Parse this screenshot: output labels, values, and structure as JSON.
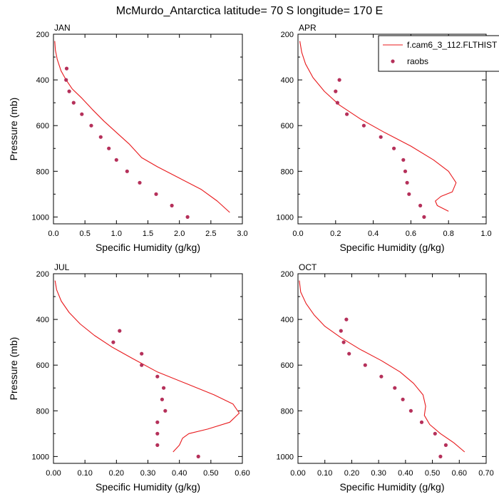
{
  "figure": {
    "title": "McMurdo_Antarctica  latitude= 70 S longitude= 170 E"
  },
  "legend": {
    "model_label": "f.cam6_3_112.FLTHIST",
    "obs_label": "raobs",
    "placement": "top-right (in APR panel)"
  },
  "colors": {
    "model_line": "#e8191c",
    "obs_marker": "#b5305a"
  },
  "chart_data": [
    {
      "type": "line",
      "title": "JAN",
      "xlabel": "Specific Humidity (g/kg)",
      "ylabel": "Pressure (mb)",
      "xlim": [
        0,
        3.0
      ],
      "ylim": [
        200,
        1030
      ],
      "y_inverted": true,
      "xticks": [
        "0.0",
        "0.5",
        "1.0",
        "1.5",
        "2.0",
        "2.5",
        "3.0"
      ],
      "yticks": [
        "200",
        "400",
        "600",
        "800",
        "1000"
      ],
      "series": [
        {
          "name": "f.cam6_3_112.FLTHIST",
          "kind": "line",
          "points": [
            [
              0.02,
              230
            ],
            [
              0.03,
              270
            ],
            [
              0.06,
              310
            ],
            [
              0.12,
              360
            ],
            [
              0.2,
              400
            ],
            [
              0.3,
              440
            ],
            [
              0.45,
              480
            ],
            [
              0.62,
              530
            ],
            [
              0.8,
              580
            ],
            [
              1.0,
              630
            ],
            [
              1.2,
              680
            ],
            [
              1.4,
              740
            ],
            [
              1.65,
              780
            ],
            [
              2.0,
              830
            ],
            [
              2.35,
              880
            ],
            [
              2.6,
              930
            ],
            [
              2.8,
              980
            ]
          ]
        },
        {
          "name": "raobs",
          "kind": "scatter",
          "points": [
            [
              0.21,
              350
            ],
            [
              0.2,
              400
            ],
            [
              0.25,
              450
            ],
            [
              0.32,
              500
            ],
            [
              0.45,
              550
            ],
            [
              0.6,
              600
            ],
            [
              0.75,
              650
            ],
            [
              0.88,
              700
            ],
            [
              1.0,
              750
            ],
            [
              1.17,
              800
            ],
            [
              1.37,
              850
            ],
            [
              1.63,
              900
            ],
            [
              1.88,
              950
            ],
            [
              2.13,
              1000
            ]
          ]
        }
      ]
    },
    {
      "type": "line",
      "title": "APR",
      "xlabel": "Specific Humidity (g/kg)",
      "ylabel": "",
      "xlim": [
        0,
        1.0
      ],
      "ylim": [
        200,
        1030
      ],
      "y_inverted": true,
      "xticks": [
        "0.0",
        "0.2",
        "0.4",
        "0.6",
        "0.8",
        "1.0"
      ],
      "yticks": [
        "200",
        "400",
        "600",
        "800",
        "1000"
      ],
      "series": [
        {
          "name": "f.cam6_3_112.FLTHIST",
          "kind": "line",
          "points": [
            [
              0.01,
              230
            ],
            [
              0.02,
              280
            ],
            [
              0.04,
              330
            ],
            [
              0.08,
              390
            ],
            [
              0.14,
              450
            ],
            [
              0.22,
              510
            ],
            [
              0.33,
              570
            ],
            [
              0.46,
              630
            ],
            [
              0.6,
              690
            ],
            [
              0.72,
              750
            ],
            [
              0.8,
              800
            ],
            [
              0.84,
              850
            ],
            [
              0.82,
              890
            ],
            [
              0.76,
              910
            ],
            [
              0.73,
              930
            ],
            [
              0.74,
              950
            ],
            [
              0.8,
              975
            ]
          ]
        },
        {
          "name": "raobs",
          "kind": "scatter",
          "points": [
            [
              0.22,
              400
            ],
            [
              0.2,
              450
            ],
            [
              0.21,
              500
            ],
            [
              0.26,
              550
            ],
            [
              0.35,
              600
            ],
            [
              0.44,
              650
            ],
            [
              0.51,
              700
            ],
            [
              0.56,
              750
            ],
            [
              0.57,
              800
            ],
            [
              0.58,
              850
            ],
            [
              0.59,
              900
            ],
            [
              0.65,
              950
            ],
            [
              0.67,
              1000
            ]
          ]
        }
      ]
    },
    {
      "type": "line",
      "title": "JUL",
      "xlabel": "Specific Humidity (g/kg)",
      "ylabel": "Pressure (mb)",
      "xlim": [
        0,
        0.6
      ],
      "ylim": [
        200,
        1030
      ],
      "y_inverted": true,
      "xticks": [
        "0.00",
        "0.10",
        "0.20",
        "0.30",
        "0.40",
        "0.50",
        "0.60"
      ],
      "yticks": [
        "200",
        "400",
        "600",
        "800",
        "1000"
      ],
      "series": [
        {
          "name": "f.cam6_3_112.FLTHIST",
          "kind": "line",
          "points": [
            [
              0.005,
              230
            ],
            [
              0.01,
              270
            ],
            [
              0.025,
              320
            ],
            [
              0.05,
              370
            ],
            [
              0.085,
              420
            ],
            [
              0.13,
              470
            ],
            [
              0.185,
              520
            ],
            [
              0.25,
              570
            ],
            [
              0.33,
              630
            ],
            [
              0.42,
              680
            ],
            [
              0.51,
              730
            ],
            [
              0.57,
              770
            ],
            [
              0.59,
              810
            ],
            [
              0.56,
              850
            ],
            [
              0.49,
              880
            ],
            [
              0.43,
              900
            ],
            [
              0.41,
              920
            ],
            [
              0.4,
              950
            ],
            [
              0.38,
              980
            ]
          ]
        },
        {
          "name": "raobs",
          "kind": "scatter",
          "points": [
            [
              0.21,
              450
            ],
            [
              0.19,
              500
            ],
            [
              0.28,
              550
            ],
            [
              0.28,
              600
            ],
            [
              0.33,
              650
            ],
            [
              0.35,
              700
            ],
            [
              0.345,
              750
            ],
            [
              0.355,
              800
            ],
            [
              0.33,
              850
            ],
            [
              0.33,
              900
            ],
            [
              0.33,
              950
            ],
            [
              0.46,
              1000
            ]
          ]
        }
      ]
    },
    {
      "type": "line",
      "title": "OCT",
      "xlabel": "Specific Humidity (g/kg)",
      "ylabel": "",
      "xlim": [
        0,
        0.7
      ],
      "ylim": [
        200,
        1030
      ],
      "y_inverted": true,
      "xticks": [
        "0.00",
        "0.10",
        "0.20",
        "0.30",
        "0.40",
        "0.50",
        "0.60",
        "0.70"
      ],
      "yticks": [
        "200",
        "400",
        "600",
        "800",
        "1000"
      ],
      "series": [
        {
          "name": "f.cam6_3_112.FLTHIST",
          "kind": "line",
          "points": [
            [
              0.005,
              230
            ],
            [
              0.01,
              280
            ],
            [
              0.03,
              330
            ],
            [
              0.06,
              380
            ],
            [
              0.1,
              430
            ],
            [
              0.16,
              480
            ],
            [
              0.23,
              530
            ],
            [
              0.31,
              580
            ],
            [
              0.38,
              630
            ],
            [
              0.43,
              680
            ],
            [
              0.465,
              730
            ],
            [
              0.475,
              780
            ],
            [
              0.47,
              820
            ],
            [
              0.49,
              860
            ],
            [
              0.53,
              900
            ],
            [
              0.58,
              940
            ],
            [
              0.62,
              980
            ]
          ]
        },
        {
          "name": "raobs",
          "kind": "scatter",
          "points": [
            [
              0.18,
              400
            ],
            [
              0.16,
              450
            ],
            [
              0.17,
              500
            ],
            [
              0.19,
              550
            ],
            [
              0.25,
              600
            ],
            [
              0.31,
              650
            ],
            [
              0.36,
              700
            ],
            [
              0.39,
              750
            ],
            [
              0.42,
              800
            ],
            [
              0.46,
              850
            ],
            [
              0.51,
              900
            ],
            [
              0.55,
              950
            ],
            [
              0.53,
              1000
            ]
          ]
        }
      ]
    }
  ]
}
